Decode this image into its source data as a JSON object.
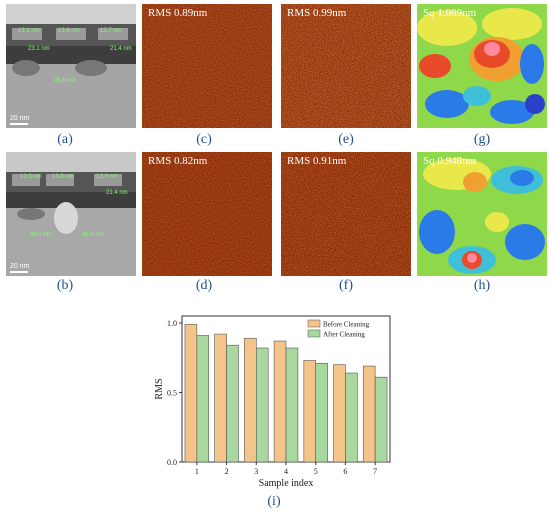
{
  "panels": {
    "a": {
      "label": "(a)",
      "scale": "20 nm",
      "measurements": [
        "13.1 nm",
        "13.6 nm",
        "12.7 nm",
        "23.1 nm",
        "21.4 nm",
        "45.6 nm"
      ]
    },
    "b": {
      "label": "(b)",
      "scale": "20 nm",
      "measurements": [
        "12.0 nm",
        "13.0 nm",
        "12.0 nm",
        "21.4 nm",
        "46.1 nm",
        "46.8 nm"
      ]
    },
    "c": {
      "label": "(c)",
      "caption": "RMS 0.89nm"
    },
    "d": {
      "label": "(d)",
      "caption": "RMS 0.82nm"
    },
    "e": {
      "label": "(e)",
      "caption": "RMS 0.99nm"
    },
    "f": {
      "label": "(f)",
      "caption": "RMS 0.91nm"
    },
    "g": {
      "label": "(g)",
      "caption": "Sq 1.089nm"
    },
    "h": {
      "label": "(h)",
      "caption": "Sq 0.948nm"
    },
    "i": {
      "label": "(i)"
    }
  },
  "colors": {
    "before": "#f5c48a",
    "after": "#a8d8a0",
    "label": "#1f4e8c",
    "afm_dark": "#7a1e05",
    "afm_light": "#b8400e"
  },
  "chart_data": {
    "type": "bar",
    "xlabel": "Sample index",
    "ylabel": "RMS",
    "ylim": [
      0.0,
      1.05
    ],
    "yticks": [
      0.0,
      0.5,
      1.0
    ],
    "categories": [
      "1",
      "2",
      "3",
      "4",
      "5",
      "6",
      "7"
    ],
    "legend_position": "top-right",
    "series": [
      {
        "name": "Before Cleaning",
        "values": [
          0.99,
          0.92,
          0.89,
          0.87,
          0.73,
          0.7,
          0.69
        ]
      },
      {
        "name": "After Cleaning",
        "values": [
          0.91,
          0.84,
          0.82,
          0.82,
          0.71,
          0.64,
          0.61
        ]
      }
    ]
  }
}
